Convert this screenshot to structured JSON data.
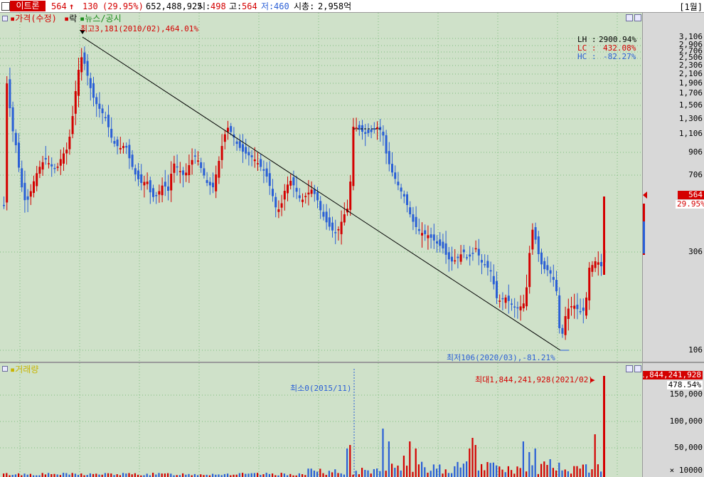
{
  "topbar": {
    "stock_name": "이트론",
    "price": "564",
    "change_arrow": "↑",
    "change": "130",
    "change_pct": "(29.95%)",
    "volume": "652,488,925",
    "open_label": "시:",
    "open": "498",
    "high_label": "고:",
    "high": "564",
    "low_label": "저:",
    "low": "460",
    "mktcap_label": "시총:",
    "mktcap": "2,958억",
    "period": "[1월]"
  },
  "colors": {
    "bg": "#cfe1c9",
    "up": "#d40000",
    "down": "#2a5fd6",
    "grid": "#7dbd7d",
    "trend": "#000000"
  },
  "price_pane": {
    "legend": [
      "가격(수정)",
      "락",
      "뉴스/공시"
    ],
    "max_label": "최고3,181(2010/02),464.01%",
    "min_label": "최저106(2020/03),-81.21%",
    "lh_label": "LH :",
    "lh_value": "2900.94%",
    "lc_label": "LC :",
    "lc_value": "432.08%",
    "hc_label": "HC :",
    "hc_value": "-82.27%",
    "current_price": "564",
    "current_pct": "29.95%",
    "ticks": [
      "3,106",
      "2,906",
      "2,706",
      "2,506",
      "2,306",
      "2,106",
      "1,906",
      "1,706",
      "1,506",
      "1,306",
      "1,106",
      "906",
      "706",
      "306",
      "106"
    ]
  },
  "volume_pane": {
    "legend": "거래량",
    "max_label": "최대1,844,241,928(2021/02)",
    "min_label": "최소0(2015/11)",
    "current_value": "1,844,241,928",
    "current_pct": "478.54%",
    "ticks": [
      "150,000",
      "100,000",
      "50,000"
    ],
    "unit": "× 10000"
  },
  "chart_data": {
    "type": "candlestick",
    "price_high": 3181,
    "price_low": 106,
    "last_close": 564,
    "log_scale": true
  }
}
